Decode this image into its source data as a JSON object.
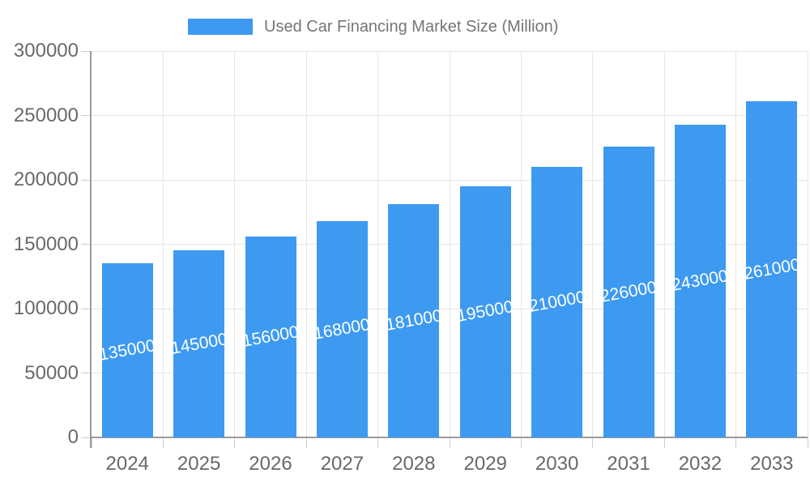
{
  "legend": {
    "label": "Used Car Financing Market Size (Million)"
  },
  "colors": {
    "bar": "#3E9AF0",
    "grid": "#E6E6E6",
    "axis_line": "#9B9B9B",
    "tick": "#CCCCCC",
    "axis_text": "#696969",
    "legend_text": "#757575",
    "bar_label_text": "#FFFFFF",
    "background": "#FFFFFF"
  },
  "chart_data": {
    "type": "bar",
    "title": "",
    "categories": [
      "2024",
      "2025",
      "2026",
      "2027",
      "2028",
      "2029",
      "2030",
      "2031",
      "2032",
      "2033"
    ],
    "series": [
      {
        "name": "Used Car Financing Market Size (Million)",
        "values": [
          135000,
          145000,
          156000,
          168000,
          181000,
          195000,
          210000,
          226000,
          243000,
          261000
        ]
      }
    ],
    "bar_value_labels": [
      "135000",
      "145000",
      "156000",
      "168000",
      "181000",
      "195000",
      "210000",
      "226000",
      "243000",
      "261000"
    ],
    "xlabel": "",
    "ylabel": "",
    "ylim": [
      0,
      300000
    ],
    "ytick_step": 50000,
    "yticks": [
      0,
      50000,
      100000,
      150000,
      200000,
      250000,
      300000
    ],
    "grid": true,
    "vertical_grid": true,
    "legend_position": "top",
    "bar_label_rotation_deg": -10
  }
}
